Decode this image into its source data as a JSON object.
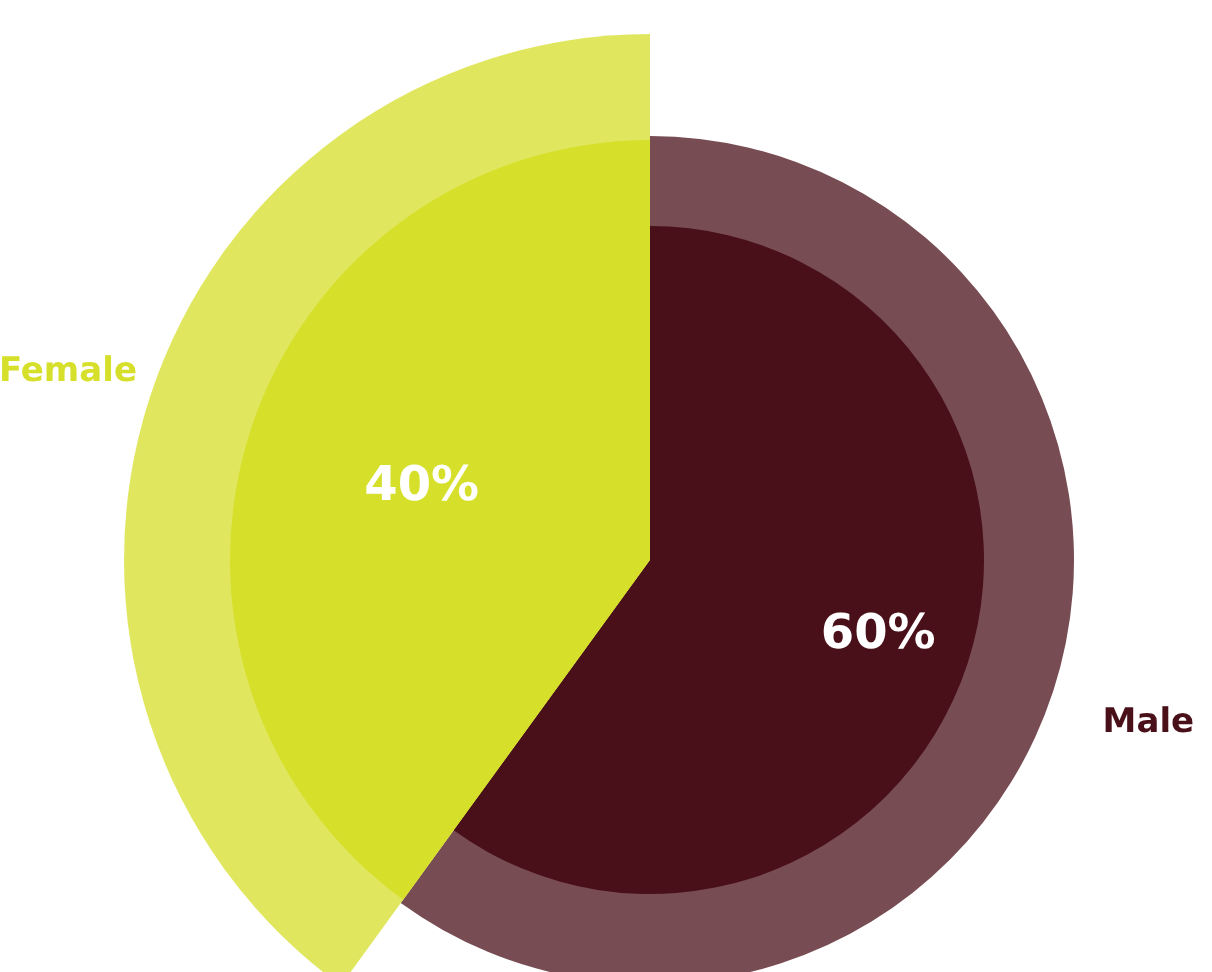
{
  "chart_data": {
    "type": "pie",
    "categories": [
      "Male",
      "Female"
    ],
    "values": [
      60,
      40
    ],
    "colors": [
      "#4a1019",
      "#d6df2a"
    ],
    "value_labels": [
      "60%",
      "40%"
    ]
  }
}
